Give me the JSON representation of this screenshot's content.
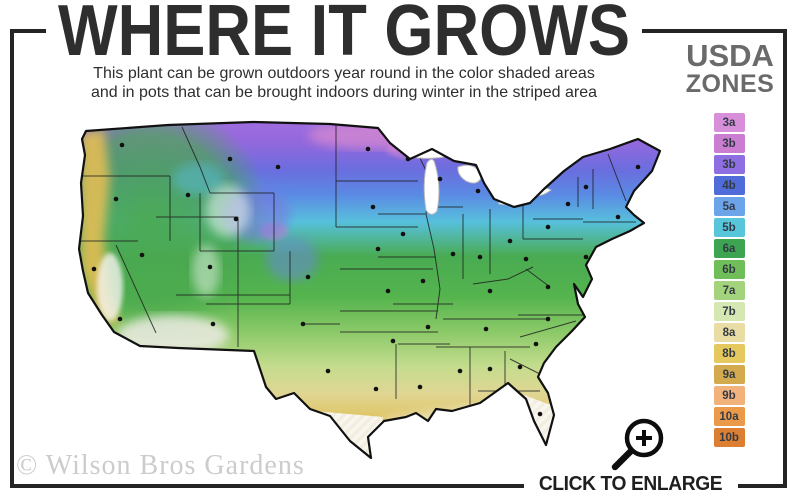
{
  "header": {
    "title": "WHERE IT GROWS",
    "subtitle_line1": "This plant can be grown outdoors year round in the color shaded areas",
    "subtitle_line2": "and in pots that can be brought indoors during winter in the striped area"
  },
  "legend": {
    "heading_line1": "USDA",
    "heading_line2": "ZONES",
    "zones": [
      {
        "label": "3a",
        "color": "#d78fd9"
      },
      {
        "label": "3b",
        "color": "#cb7ed1"
      },
      {
        "label": "3b",
        "color": "#8e6fe2"
      },
      {
        "label": "4b",
        "color": "#4f6cd8"
      },
      {
        "label": "5a",
        "color": "#6ca4ea"
      },
      {
        "label": "5b",
        "color": "#58c6da"
      },
      {
        "label": "6a",
        "color": "#3da452"
      },
      {
        "label": "6b",
        "color": "#6fbe59"
      },
      {
        "label": "7a",
        "color": "#a4d37e"
      },
      {
        "label": "7b",
        "color": "#d5e7b2"
      },
      {
        "label": "8a",
        "color": "#e9dca4"
      },
      {
        "label": "8b",
        "color": "#e5c95f"
      },
      {
        "label": "9a",
        "color": "#d3ab4e"
      },
      {
        "label": "9b",
        "color": "#f1b27c"
      },
      {
        "label": "10a",
        "color": "#eb9a4a"
      },
      {
        "label": "10b",
        "color": "#dd7f33"
      }
    ]
  },
  "footer": {
    "watermark": "© Wilson Bros Gardens",
    "enlarge_label": "CLICK TO ENLARGE"
  },
  "colors": {
    "frame": "#242424",
    "title_text": "#2e2e2e",
    "heading_gray": "#6a6a6a",
    "watermark_gray": "#cccccc"
  }
}
